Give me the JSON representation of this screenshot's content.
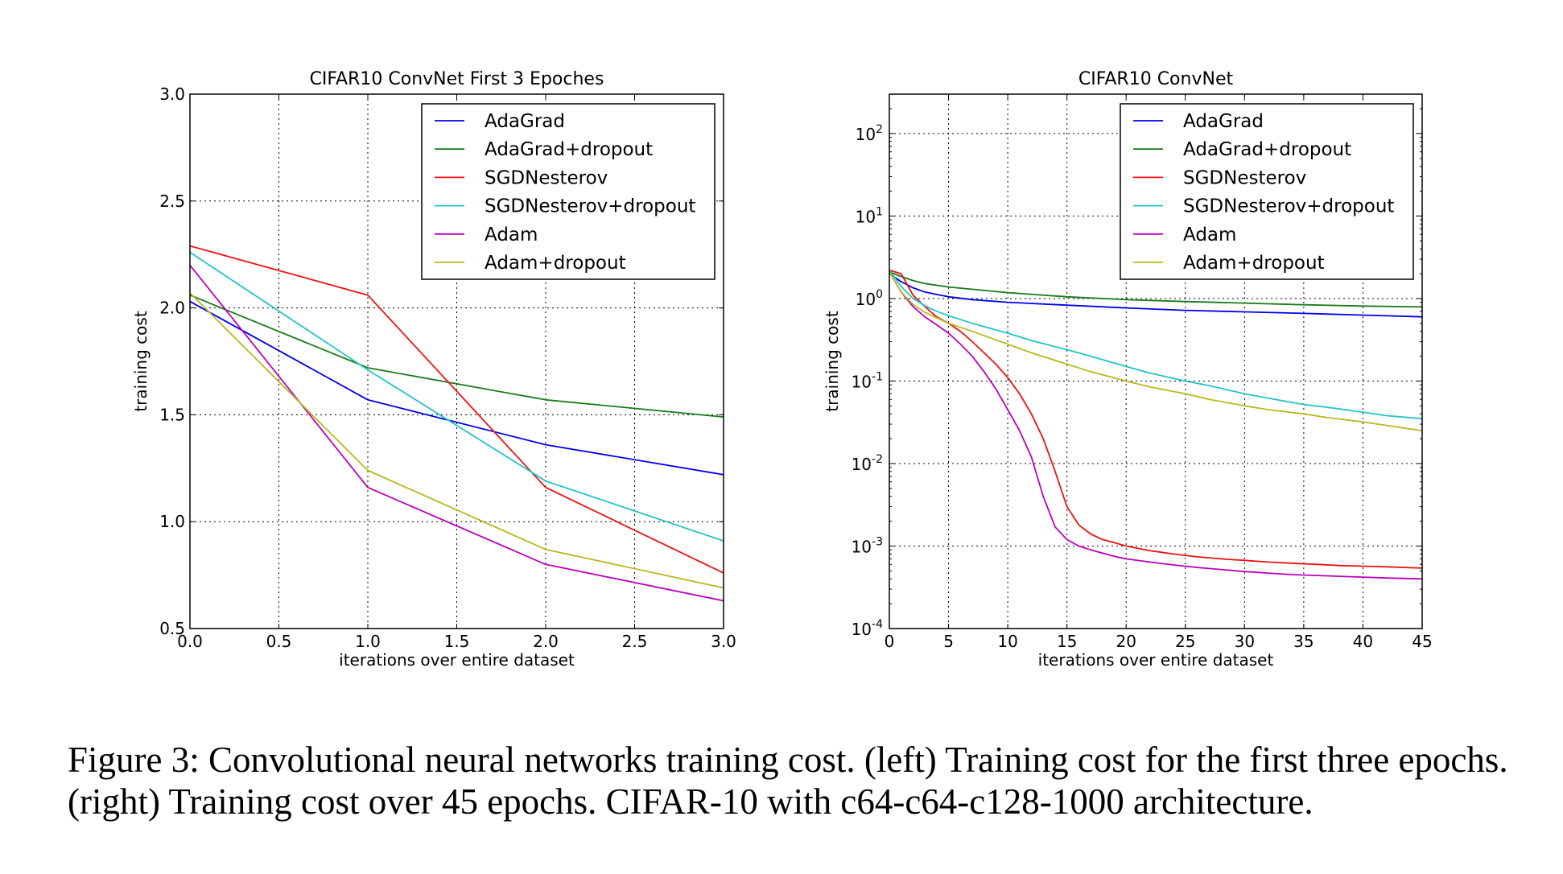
{
  "colors": {
    "AdaGrad": "#0000ee",
    "AdaGrad+dropout": "#1a7a1a",
    "SGDNesterov": "#ee1111",
    "SGDNesterov+dropout": "#22c4c4",
    "Adam": "#bb00bb",
    "Adam+dropout": "#b8b820"
  },
  "chart_data": [
    {
      "type": "line",
      "title": "CIFAR10 ConvNet First 3 Epoches",
      "xlabel": "iterations over entire dataset",
      "ylabel": "training cost",
      "xlim": [
        0,
        3
      ],
      "ylim": [
        0.5,
        3.0
      ],
      "xticks": [
        "0.0",
        "0.5",
        "1.0",
        "1.5",
        "2.0",
        "2.5",
        "3.0"
      ],
      "yticks": [
        "0.5",
        "1.0",
        "1.5",
        "2.0",
        "2.5",
        "3.0"
      ],
      "grid": true,
      "legend_position": "top-right",
      "x": [
        0,
        1,
        2,
        3
      ],
      "series": [
        {
          "name": "AdaGrad",
          "values": [
            2.03,
            1.57,
            1.36,
            1.22
          ]
        },
        {
          "name": "AdaGrad+dropout",
          "values": [
            2.06,
            1.72,
            1.57,
            1.49
          ]
        },
        {
          "name": "SGDNesterov",
          "values": [
            2.29,
            2.06,
            1.16,
            0.76
          ]
        },
        {
          "name": "SGDNesterov+dropout",
          "values": [
            2.26,
            1.71,
            1.19,
            0.91
          ]
        },
        {
          "name": "Adam",
          "values": [
            2.2,
            1.16,
            0.8,
            0.63
          ]
        },
        {
          "name": "Adam+dropout",
          "values": [
            2.07,
            1.24,
            0.87,
            0.69
          ]
        }
      ]
    },
    {
      "type": "line",
      "title": "CIFAR10 ConvNet",
      "xlabel": "iterations over entire dataset",
      "ylabel": "training cost",
      "xlim": [
        0,
        45
      ],
      "ylim": [
        0.0001,
        300
      ],
      "yscale": "log",
      "xticks": [
        "0",
        "5",
        "10",
        "15",
        "20",
        "25",
        "30",
        "35",
        "40",
        "45"
      ],
      "yticks": [
        {
          "base": "10",
          "exp": "-4",
          "value": 0.0001
        },
        {
          "base": "10",
          "exp": "-3",
          "value": 0.001
        },
        {
          "base": "10",
          "exp": "-2",
          "value": 0.01
        },
        {
          "base": "10",
          "exp": "-1",
          "value": 0.1
        },
        {
          "base": "10",
          "exp": "0",
          "value": 1
        },
        {
          "base": "10",
          "exp": "1",
          "value": 10
        },
        {
          "base": "10",
          "exp": "2",
          "value": 100
        }
      ],
      "grid": true,
      "legend_position": "top-right",
      "series": [
        {
          "name": "AdaGrad",
          "x": [
            0,
            1,
            2,
            3,
            4,
            5,
            7,
            10,
            15,
            20,
            25,
            30,
            35,
            40,
            45
          ],
          "values": [
            2.0,
            1.6,
            1.35,
            1.2,
            1.12,
            1.05,
            0.97,
            0.9,
            0.83,
            0.77,
            0.72,
            0.69,
            0.66,
            0.63,
            0.6
          ]
        },
        {
          "name": "AdaGrad+dropout",
          "x": [
            0,
            1,
            2,
            3,
            5,
            10,
            15,
            20,
            25,
            30,
            35,
            40,
            45
          ],
          "values": [
            2.1,
            1.85,
            1.65,
            1.52,
            1.38,
            1.18,
            1.05,
            0.97,
            0.92,
            0.88,
            0.84,
            0.81,
            0.79
          ]
        },
        {
          "name": "SGDNesterov",
          "x": [
            0,
            1,
            2,
            3,
            4,
            5,
            6,
            7,
            8,
            9,
            10,
            11,
            12,
            13,
            14,
            15,
            16,
            17,
            18,
            19,
            20,
            22,
            24,
            26,
            28,
            30,
            32,
            34,
            36,
            38,
            40,
            42,
            45
          ],
          "values": [
            2.2,
            2.0,
            1.1,
            0.8,
            0.6,
            0.5,
            0.4,
            0.3,
            0.22,
            0.16,
            0.11,
            0.07,
            0.04,
            0.02,
            0.008,
            0.003,
            0.0018,
            0.0014,
            0.0012,
            0.0011,
            0.001,
            0.00088,
            0.0008,
            0.00074,
            0.0007,
            0.00067,
            0.00064,
            0.00062,
            0.0006,
            0.00058,
            0.00057,
            0.00056,
            0.00054
          ]
        },
        {
          "name": "SGDNesterov+dropout",
          "x": [
            0,
            1,
            2,
            3,
            4,
            5,
            7,
            10,
            12,
            15,
            17,
            20,
            22,
            25,
            27,
            30,
            32,
            35,
            37,
            40,
            42,
            45
          ],
          "values": [
            2.2,
            1.4,
            1.0,
            0.82,
            0.7,
            0.62,
            0.5,
            0.38,
            0.31,
            0.24,
            0.2,
            0.15,
            0.125,
            0.1,
            0.088,
            0.07,
            0.062,
            0.052,
            0.048,
            0.042,
            0.038,
            0.035
          ]
        },
        {
          "name": "Adam",
          "x": [
            0,
            1,
            2,
            3,
            4,
            5,
            6,
            7,
            8,
            9,
            10,
            11,
            12,
            13,
            14,
            15,
            16,
            17,
            18,
            19,
            20,
            22,
            24,
            26,
            28,
            30,
            32,
            34,
            36,
            38,
            40,
            42,
            45
          ],
          "values": [
            2.1,
            1.2,
            0.8,
            0.6,
            0.48,
            0.38,
            0.28,
            0.2,
            0.13,
            0.08,
            0.045,
            0.025,
            0.012,
            0.004,
            0.0017,
            0.0012,
            0.001,
            0.0009,
            0.00082,
            0.00075,
            0.0007,
            0.00064,
            0.00059,
            0.00055,
            0.00052,
            0.00049,
            0.00047,
            0.00045,
            0.00044,
            0.00043,
            0.00042,
            0.00041,
            0.0004
          ]
        },
        {
          "name": "Adam+dropout",
          "x": [
            0,
            1,
            2,
            3,
            5,
            7,
            10,
            12,
            15,
            17,
            20,
            22,
            25,
            27,
            30,
            32,
            35,
            37,
            40,
            42,
            45
          ],
          "values": [
            2.1,
            1.2,
            0.85,
            0.68,
            0.5,
            0.4,
            0.28,
            0.22,
            0.16,
            0.13,
            0.1,
            0.085,
            0.07,
            0.06,
            0.05,
            0.045,
            0.04,
            0.036,
            0.032,
            0.029,
            0.025
          ]
        }
      ]
    }
  ],
  "caption": {
    "line1": "Figure 3: Convolutional neural networks training cost. (left) Training cost for the first three epochs.",
    "line2": "(right) Training cost over 45 epochs. CIFAR-10 with c64-c64-c128-1000 architecture."
  }
}
